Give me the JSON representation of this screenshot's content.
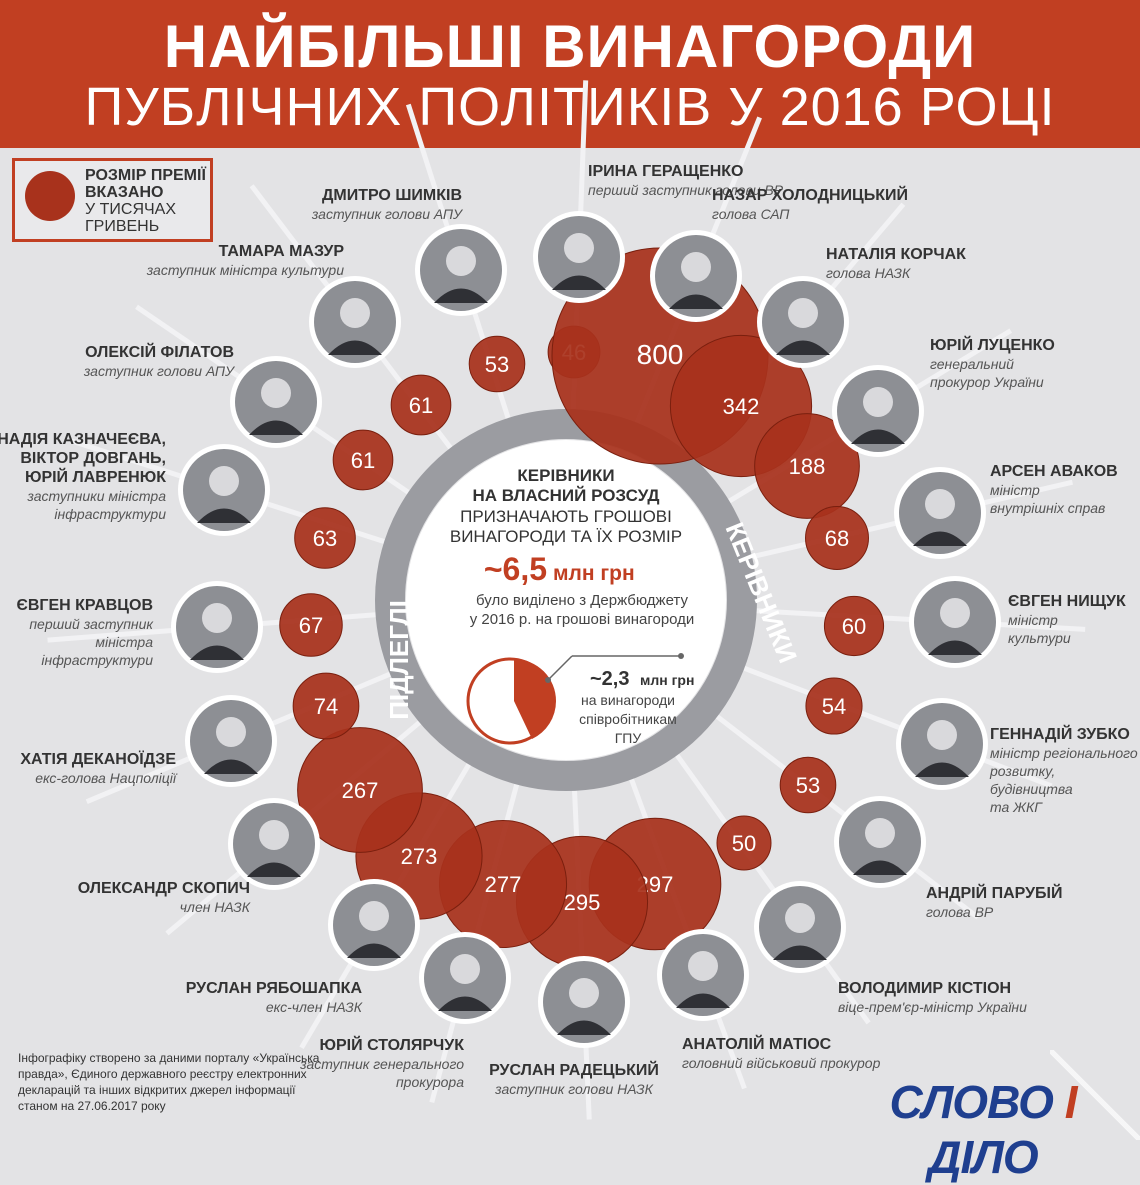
{
  "title_line1": "НАЙБІЛЬШІ ВИНАГОРОДИ",
  "title_line2": "ПУБЛІЧНИХ ПОЛІТИКІВ У 2016 РОЦІ",
  "legend": {
    "line1": "РОЗМІР ПРЕМІЇ",
    "line2": "ВКАЗАНО",
    "line3": "У ТИСЯЧАХ",
    "line4": "ГРИВЕНЬ"
  },
  "center": {
    "t1": "КЕРІВНИКИ",
    "t2": "НА ВЛАСНИЙ РОЗСУД",
    "t3": "ПРИЗНАЧАЮТЬ ГРОШОВІ",
    "t4": "ВИНАГОРОДИ ТА ЇХ РОЗМІР",
    "big_value": "~6,5",
    "big_unit": "млн грн",
    "s1": "було виділено з Держбюджету",
    "s2": "у 2016 р. на грошові винагороди",
    "pie_value": "~2,3",
    "pie_unit": "млн грн",
    "p1": "на винагороди",
    "p2": "співробітникам",
    "p3": "ГПУ"
  },
  "ring_labels": {
    "leaders": "КЕРІВНИКИ",
    "subordinates": "ПІДЛЕГЛІ"
  },
  "colors": {
    "bubble": "#a8321c",
    "accent": "#c13f22",
    "ring": "#9b9ca1",
    "background": "#e3e3e5"
  },
  "chart_data": {
    "type": "bubble",
    "unit": "тис. грн",
    "people": [
      {
        "name": "ІРИНА ГЕРАЩЕНКО",
        "role": "перший заступник голови ВР",
        "value": 46
      },
      {
        "name": "НАЗАР ХОЛОДНИЦЬКИЙ",
        "role": "голова САП",
        "value": 800
      },
      {
        "name": "НАТАЛІЯ КОРЧАК",
        "role": "голова НАЗК",
        "value": 342
      },
      {
        "name": "ЮРІЙ ЛУЦЕНКО",
        "role": "генеральний прокурор України",
        "value": 188
      },
      {
        "name": "АРСЕН АВАКОВ",
        "role": "міністр внутрішніх справ",
        "value": 68
      },
      {
        "name": "ЄВГЕН НИЩУК",
        "role": "міністр культури",
        "value": 60
      },
      {
        "name": "ГЕННАДІЙ ЗУБКО",
        "role": "міністр регіонального розвитку, будівництва та ЖКГ",
        "value": 54
      },
      {
        "name": "АНДРІЙ ПАРУБІЙ",
        "role": "голова ВР",
        "value": 53
      },
      {
        "name": "ВОЛОДИМИР КІСТІОН",
        "role": "віце-прем'єр-міністр України",
        "value": 50
      },
      {
        "name": "АНАТОЛІЙ МАТІОС",
        "role": "головний військовий прокурор",
        "value": 297
      },
      {
        "name": "РУСЛАН РАДЕЦЬКИЙ",
        "role": "заступник голови НАЗК",
        "value": 295
      },
      {
        "name": "ЮРІЙ СТОЛЯРЧУК",
        "role": "заступник генерального прокурора",
        "value": 277
      },
      {
        "name": "РУСЛАН РЯБОШАПКА",
        "role": "екс-член НАЗК",
        "value": 273
      },
      {
        "name": "ОЛЕКСАНДР СКОПИЧ",
        "role": "член НАЗК",
        "value": 267
      },
      {
        "name": "ХАТІЯ ДЕКАНОЇДЗЕ",
        "role": "екс-голова Нацполіції",
        "value": 74
      },
      {
        "name": "ЄВГЕН КРАВЦОВ",
        "role": "перший заступник міністра інфраструктури",
        "value": 67
      },
      {
        "name": "НАДІЯ КАЗНАЧЕЄВА, ВІКТОР ДОВГАНЬ, ЮРІЙ ЛАВРЕНЮК",
        "role": "заступники міністра інфраструктури",
        "value": 63
      },
      {
        "name": "ОЛЕКСІЙ ФІЛАТОВ",
        "role": "заступник голови АПУ",
        "value": 61
      },
      {
        "name": "ТАМАРА МАЗУР",
        "role": "заступник міністра культури",
        "value": 61
      },
      {
        "name": "ДМИТРО ШИМКІВ",
        "role": "заступник голови АПУ",
        "value": 53
      }
    ]
  },
  "source_note": "Інфографіку створено за даними порталу «Українська правда», Єдиного державного реєстру електронних декларацій та інших відкритих джерел інформації станом на 27.06.2017 року",
  "logo": {
    "a": "СЛОВО",
    "b": "І",
    "c": "ДІЛО"
  }
}
